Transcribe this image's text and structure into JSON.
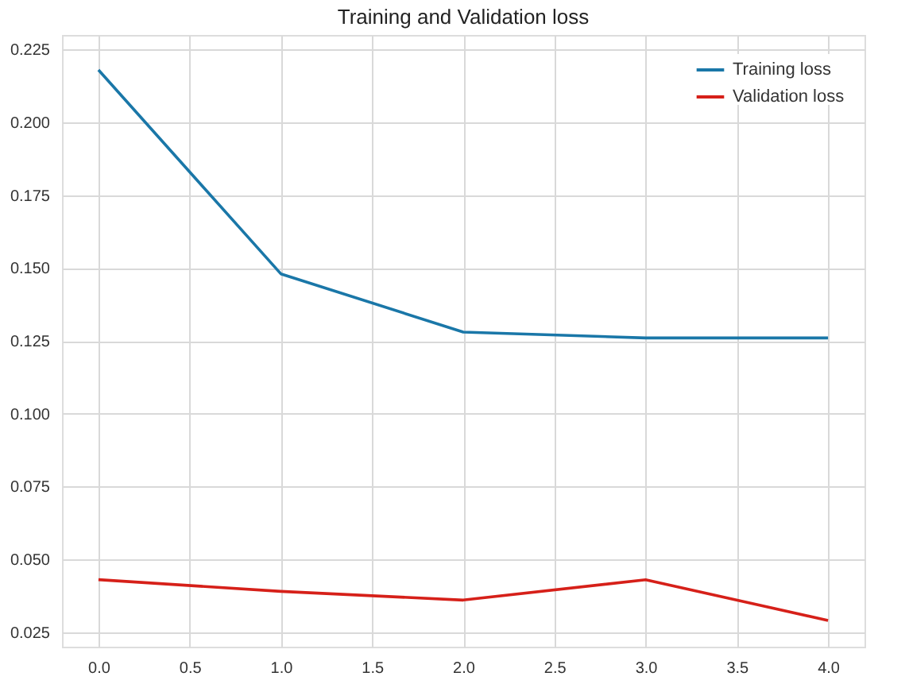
{
  "chart_data": {
    "type": "line",
    "title": "Training and Validation loss",
    "x": [
      0,
      1,
      2,
      3,
      4
    ],
    "series": [
      {
        "name": "Training loss",
        "color": "#1a77a8",
        "values": [
          0.218,
          0.148,
          0.128,
          0.126,
          0.126
        ]
      },
      {
        "name": "Validation loss",
        "color": "#d62019",
        "values": [
          0.043,
          0.039,
          0.036,
          0.043,
          0.029
        ]
      }
    ],
    "xlim": [
      -0.2,
      4.2
    ],
    "xticks": [
      {
        "value": 0,
        "label": "0.0"
      },
      {
        "value": 0.5,
        "label": "0.5"
      },
      {
        "value": 1,
        "label": "1.0"
      },
      {
        "value": 1.5,
        "label": "1.5"
      },
      {
        "value": 2,
        "label": "2.0"
      },
      {
        "value": 2.5,
        "label": "2.5"
      },
      {
        "value": 3,
        "label": "3.0"
      },
      {
        "value": 3.5,
        "label": "3.5"
      },
      {
        "value": 4,
        "label": "4.0"
      }
    ],
    "ylim": [
      0.02,
      0.23
    ],
    "yticks": [
      {
        "value": 0.025,
        "label": "0.025"
      },
      {
        "value": 0.05,
        "label": "0.050"
      },
      {
        "value": 0.075,
        "label": "0.075"
      },
      {
        "value": 0.1,
        "label": "0.100"
      },
      {
        "value": 0.125,
        "label": "0.125"
      },
      {
        "value": 0.15,
        "label": "0.150"
      },
      {
        "value": 0.175,
        "label": "0.175"
      },
      {
        "value": 0.2,
        "label": "0.200"
      },
      {
        "value": 0.225,
        "label": "0.225"
      }
    ],
    "grid": true,
    "legend": "top right",
    "marker": "none",
    "line_style": "solid"
  }
}
